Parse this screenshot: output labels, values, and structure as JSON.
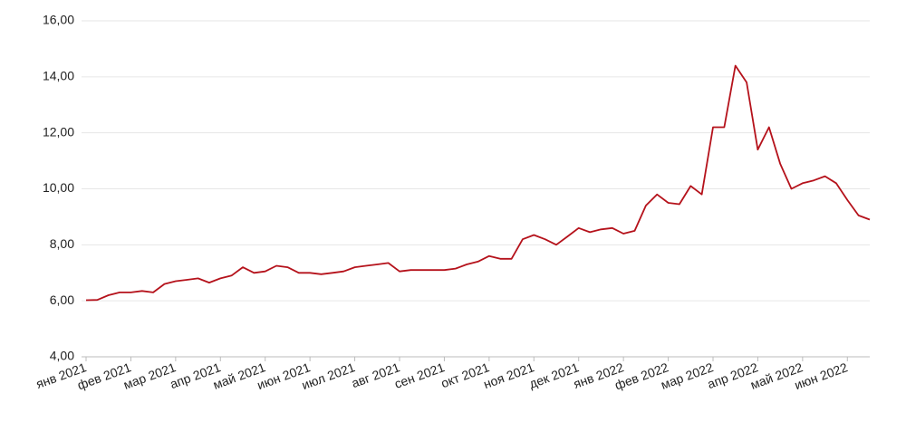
{
  "chart_data": {
    "type": "line",
    "categories": [
      "янв 2021",
      null,
      null,
      null,
      "фев 2021",
      null,
      null,
      null,
      "мар 2021",
      null,
      null,
      null,
      "апр 2021",
      null,
      null,
      null,
      "май 2021",
      null,
      null,
      null,
      "июн 2021",
      null,
      null,
      null,
      "июл 2021",
      null,
      null,
      null,
      "авг 2021",
      null,
      null,
      null,
      "сен 2021",
      null,
      null,
      null,
      "окт 2021",
      null,
      null,
      null,
      "ноя 2021",
      null,
      null,
      null,
      "дек 2021",
      null,
      null,
      null,
      "янв 2022",
      null,
      null,
      null,
      "фев 2022",
      null,
      null,
      null,
      "мар 2022",
      null,
      null,
      null,
      "апр 2022",
      null,
      null,
      null,
      "май 2022",
      null,
      null,
      null,
      "июн 2022",
      null,
      null
    ],
    "values": [
      6.02,
      6.03,
      6.2,
      6.3,
      6.3,
      6.35,
      6.3,
      6.6,
      6.7,
      6.75,
      6.8,
      6.65,
      6.8,
      6.9,
      7.2,
      7.0,
      7.05,
      7.25,
      7.2,
      7.0,
      7.0,
      6.95,
      7.0,
      7.05,
      7.2,
      7.25,
      7.3,
      7.35,
      7.05,
      7.1,
      7.1,
      7.1,
      7.1,
      7.15,
      7.3,
      7.4,
      7.6,
      7.5,
      7.5,
      8.2,
      8.35,
      8.2,
      8.0,
      8.3,
      8.6,
      8.45,
      8.55,
      8.6,
      8.4,
      8.5,
      9.4,
      9.8,
      9.5,
      9.45,
      10.1,
      9.8,
      12.2,
      12.2,
      14.4,
      13.8,
      11.4,
      12.2,
      10.9,
      10.0,
      10.2,
      10.3,
      10.45,
      10.2,
      9.6,
      9.05,
      8.9
    ],
    "color": "#b5121b",
    "ylim": [
      4,
      16
    ],
    "yticks": [
      {
        "value": 4,
        "label": "4,00"
      },
      {
        "value": 6,
        "label": "6,00"
      },
      {
        "value": 8,
        "label": "8,00"
      },
      {
        "value": 10,
        "label": "10,00"
      },
      {
        "value": 12,
        "label": "12,00"
      },
      {
        "value": 14,
        "label": "14,00"
      },
      {
        "value": 16,
        "label": "16,00"
      }
    ],
    "grid": true
  }
}
